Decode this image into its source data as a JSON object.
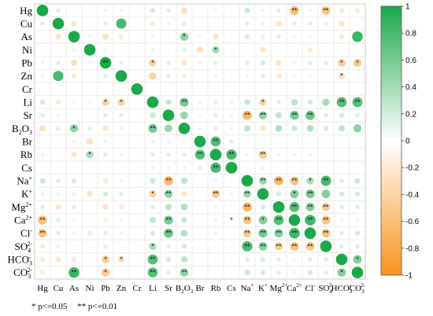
{
  "chart_data": {
    "type": "heatmap",
    "variables": [
      "Hg",
      "Cu",
      "As",
      "Ni",
      "Pb",
      "Zn",
      "Cr",
      "Li",
      "Sr",
      "B2O3",
      "Br",
      "Rb",
      "Cs",
      "Na+",
      "K+",
      "Mg2+",
      "Ca2+",
      "Cl-",
      "SO42-",
      "HCO3-",
      "CO32-"
    ],
    "row_labels": [
      {
        "base": "Hg",
        "sup": "",
        "sub": ""
      },
      {
        "base": "Cu",
        "sup": "",
        "sub": ""
      },
      {
        "base": "As",
        "sup": "",
        "sub": ""
      },
      {
        "base": "Ni",
        "sup": "",
        "sub": ""
      },
      {
        "base": "Pb",
        "sup": "",
        "sub": ""
      },
      {
        "base": "Zn",
        "sup": "",
        "sub": ""
      },
      {
        "base": "Cr",
        "sup": "",
        "sub": ""
      },
      {
        "base": "Li",
        "sup": "",
        "sub": ""
      },
      {
        "base": "Sr",
        "sup": "",
        "sub": ""
      },
      {
        "base": "B",
        "sup": "",
        "sub": "2",
        "base2": "O",
        "sub2": "3"
      },
      {
        "base": "Br",
        "sup": "",
        "sub": ""
      },
      {
        "base": "Rb",
        "sup": "",
        "sub": ""
      },
      {
        "base": "Cs",
        "sup": "",
        "sub": ""
      },
      {
        "base": "Na",
        "sup": "+",
        "sub": ""
      },
      {
        "base": "K",
        "sup": "+",
        "sub": ""
      },
      {
        "base": "Mg",
        "sup": "2+",
        "sub": ""
      },
      {
        "base": "Ca",
        "sup": "2+",
        "sub": ""
      },
      {
        "base": "Cl",
        "sup": "-",
        "sub": ""
      },
      {
        "base": "SO",
        "sup": "2-",
        "sub": "4"
      },
      {
        "base": "HCO",
        "sup": "-",
        "sub": "3"
      },
      {
        "base": "CO",
        "sup": "2-",
        "sub": "3"
      }
    ],
    "col_labels": [
      {
        "base": "Hg",
        "sup": "",
        "sub": ""
      },
      {
        "base": "Cu",
        "sup": "",
        "sub": ""
      },
      {
        "base": "As",
        "sup": "",
        "sub": ""
      },
      {
        "base": "Ni",
        "sup": "",
        "sub": ""
      },
      {
        "base": "Pb",
        "sup": "",
        "sub": ""
      },
      {
        "base": "Zn",
        "sup": "",
        "sub": ""
      },
      {
        "base": "Cr",
        "sup": "",
        "sub": ""
      },
      {
        "base": "Li",
        "sup": "",
        "sub": ""
      },
      {
        "base": "Sr",
        "sup": "",
        "sub": ""
      },
      {
        "base": "B",
        "sup": "",
        "sub": "2",
        "base2": "O",
        "sub2": "3"
      },
      {
        "base": "Br",
        "sup": "",
        "sub": ""
      },
      {
        "base": "Rb",
        "sup": "",
        "sub": ""
      },
      {
        "base": "Cs",
        "sup": "",
        "sub": ""
      },
      {
        "base": "Na",
        "sup": "+",
        "sub": ""
      },
      {
        "base": "K",
        "sup": "+",
        "sub": ""
      },
      {
        "base": "Mg",
        "sup": "2+",
        "sub": ""
      },
      {
        "base": "Ca",
        "sup": "2+",
        "sub": ""
      },
      {
        "base": "Cl",
        "sup": "-",
        "sub": ""
      },
      {
        "base": "SO",
        "sup": "2-",
        "sub": "4"
      },
      {
        "base": "HCO",
        "sup": "-",
        "sub": "3"
      },
      {
        "base": "CO",
        "sup": "2-",
        "sub": "3"
      }
    ],
    "matrix": [
      [
        1.0,
        0.15,
        0.05,
        0.05,
        0.1,
        0.1,
        0.05,
        0.2,
        0.15,
        -0.3,
        0.05,
        0.1,
        0.05,
        0.25,
        0.1,
        0.15,
        -0.6,
        0.1,
        -0.55,
        -0.2,
        -0.2
      ],
      [
        0.15,
        1.0,
        -0.25,
        0.05,
        0.15,
        0.8,
        0.05,
        -0.2,
        0.1,
        -0.2,
        0.05,
        0.05,
        0.05,
        0.15,
        0.1,
        -0.25,
        0.15,
        0.15,
        -0.15,
        -0.25,
        0.05
      ],
      [
        0.05,
        -0.25,
        1.0,
        0.1,
        -0.3,
        -0.2,
        0.05,
        0.1,
        0.05,
        0.5,
        0.1,
        -0.25,
        0.05,
        0.2,
        -0.15,
        0.15,
        0.1,
        0.1,
        0.05,
        -0.2,
        0.85
      ],
      [
        0.05,
        0.05,
        0.1,
        1.0,
        0.1,
        0.05,
        0.05,
        0.1,
        0.05,
        0.15,
        -0.3,
        0.4,
        0.05,
        0.05,
        -0.25,
        0.05,
        0.05,
        -0.2,
        0.05,
        0.05,
        0.05
      ],
      [
        0.1,
        0.15,
        -0.3,
        0.1,
        1.0,
        0.15,
        0.05,
        -0.4,
        0.15,
        -0.25,
        0.1,
        0.15,
        0.05,
        -0.2,
        0.2,
        -0.25,
        -0.15,
        0.15,
        0.15,
        -0.45,
        -0.5
      ],
      [
        0.1,
        0.8,
        -0.2,
        0.05,
        0.15,
        1.0,
        0.05,
        -0.4,
        0.15,
        -0.15,
        0.05,
        0.1,
        0.05,
        0.1,
        0.15,
        -0.2,
        0.1,
        0.1,
        0.05,
        -0.3,
        0.05
      ],
      [
        0.05,
        0.05,
        0.05,
        0.05,
        0.05,
        0.05,
        1.0,
        0.05,
        0.05,
        0.05,
        0.05,
        0.05,
        0.05,
        0.05,
        0.05,
        0.05,
        0.05,
        0.05,
        0.05,
        0.05,
        0.05
      ],
      [
        0.2,
        -0.2,
        0.1,
        0.1,
        -0.4,
        -0.4,
        0.05,
        1.0,
        0.25,
        0.6,
        0.1,
        0.15,
        0.1,
        0.25,
        -0.4,
        0.15,
        0.3,
        0.2,
        0.4,
        0.75,
        0.75
      ],
      [
        0.15,
        0.1,
        0.05,
        0.05,
        0.15,
        0.15,
        0.05,
        0.25,
        1.0,
        0.45,
        0.1,
        0.15,
        0.1,
        -0.65,
        0.5,
        0.3,
        0.6,
        0.65,
        0.15,
        0.2,
        0.15
      ],
      [
        -0.3,
        -0.2,
        0.5,
        0.15,
        -0.25,
        -0.15,
        0.05,
        0.6,
        0.45,
        1.0,
        0.1,
        0.15,
        0.1,
        0.3,
        -0.25,
        0.35,
        0.25,
        0.35,
        0.2,
        0.3,
        0.5
      ],
      [
        0.05,
        0.05,
        0.1,
        -0.3,
        0.1,
        0.05,
        0.05,
        0.1,
        0.1,
        0.1,
        1.0,
        0.75,
        0.15,
        0.05,
        0.05,
        0.05,
        0.05,
        0.05,
        0.05,
        0.05,
        0.05
      ],
      [
        0.1,
        0.05,
        -0.25,
        0.4,
        0.15,
        0.1,
        0.05,
        0.15,
        0.15,
        0.15,
        0.75,
        1.0,
        0.8,
        0.1,
        -0.5,
        0.1,
        0.1,
        0.1,
        0.05,
        0.05,
        0.05
      ],
      [
        0.05,
        0.05,
        0.05,
        0.05,
        0.05,
        0.05,
        0.05,
        0.1,
        0.1,
        0.1,
        0.15,
        0.8,
        1.0,
        0.05,
        0.1,
        0.05,
        0.05,
        0.05,
        0.05,
        0.05,
        0.05
      ],
      [
        0.25,
        0.15,
        0.2,
        0.05,
        -0.2,
        0.1,
        0.05,
        0.25,
        -0.65,
        0.3,
        0.05,
        0.1,
        0.05,
        1.0,
        0.45,
        -0.65,
        -0.55,
        0.4,
        0.8,
        0.15,
        0.25
      ],
      [
        0.1,
        0.1,
        -0.15,
        -0.25,
        0.2,
        0.15,
        0.05,
        -0.4,
        0.5,
        -0.25,
        0.05,
        -0.5,
        0.1,
        0.45,
        1.0,
        0.2,
        0.55,
        0.6,
        0.55,
        0.2,
        0.2
      ],
      [
        0.15,
        -0.25,
        0.15,
        0.05,
        -0.25,
        -0.2,
        0.05,
        0.15,
        0.3,
        0.35,
        0.05,
        0.1,
        0.05,
        -0.65,
        0.2,
        1.0,
        0.75,
        0.55,
        -0.5,
        0.15,
        0.15
      ],
      [
        -0.6,
        0.15,
        0.1,
        0.05,
        -0.15,
        0.1,
        0.05,
        0.3,
        0.6,
        0.25,
        0.05,
        0.1,
        0.05,
        -0.55,
        0.55,
        0.75,
        1.0,
        0.85,
        -0.55,
        0.1,
        0.1
      ],
      [
        -0.55,
        0.15,
        0.1,
        -0.2,
        0.15,
        0.1,
        0.05,
        0.2,
        0.65,
        0.35,
        0.05,
        0.1,
        0.05,
        -0.5,
        0.6,
        0.55,
        0.85,
        1.0,
        -0.55,
        0.15,
        0.2
      ],
      [
        -0.2,
        -0.15,
        0.05,
        0.05,
        0.15,
        0.05,
        0.05,
        0.4,
        0.15,
        0.2,
        0.05,
        0.05,
        0.05,
        0.8,
        0.55,
        -0.5,
        -0.55,
        -0.55,
        1.0,
        0.15,
        0.15
      ],
      [
        -0.2,
        -0.25,
        -0.2,
        0.05,
        -0.45,
        -0.3,
        0.05,
        0.75,
        0.2,
        0.3,
        0.05,
        0.05,
        0.05,
        0.15,
        0.2,
        0.15,
        0.1,
        0.15,
        0.15,
        1.0,
        0.55
      ],
      [
        -0.2,
        0.05,
        0.85,
        0.05,
        -0.5,
        0.05,
        0.05,
        0.75,
        0.15,
        0.5,
        0.05,
        0.05,
        0.05,
        0.25,
        0.2,
        0.15,
        0.1,
        0.2,
        0.15,
        0.55,
        1.0
      ]
    ],
    "significance_marks": {
      "0,16": "**",
      "0,18": "**",
      "2,9": "*",
      "3,11": "*",
      "4,4": "**",
      "4,7": "*",
      "4,19": "*",
      "4,20": "*",
      "5,19": "*",
      "7,4": "*",
      "7,5": "*",
      "7,9": "**",
      "7,14": "*",
      "7,19": "**",
      "7,20": "**",
      "8,13": "**",
      "8,14": "**",
      "8,16": "**",
      "8,17": "**",
      "9,2": "*",
      "9,7": "**",
      "10,11": "**",
      "11,3": "*",
      "11,10": "**",
      "11,12": "**",
      "11,14": "**",
      "12,11": "**",
      "13,8": "**",
      "13,14": "**",
      "13,15": "**",
      "13,16": "**",
      "13,17": "*",
      "13,18": "**",
      "14,7": "*",
      "14,8": "**",
      "14,11": "**",
      "14,13": "**",
      "14,16": "*",
      "14,17": "**",
      "15,13": "**",
      "15,16": "**",
      "15,17": "**",
      "15,18": "**",
      "16,0": "**",
      "16,8": "**",
      "16,12": "*",
      "16,13": "**",
      "16,14": "*",
      "16,15": "**",
      "16,17": "**",
      "16,18": "**",
      "17,0": "**",
      "17,8": "**",
      "17,13": "**",
      "17,14": "**",
      "17,15": "**",
      "17,16": "**",
      "17,18": "**",
      "18,7": "*",
      "18,13": "**",
      "18,14": "**",
      "18,15": "**",
      "18,16": "**",
      "18,17": "**",
      "19,4": "*",
      "19,5": "*",
      "19,7": "**",
      "19,20": "*",
      "20,2": "**",
      "20,4": "*",
      "20,7": "**",
      "20,9": "**",
      "20,19": "*"
    },
    "colorbar": {
      "min": -1,
      "max": 1,
      "ticks": [
        1,
        0.8,
        0.6,
        0.4,
        0.2,
        0,
        -0.2,
        -0.4,
        -0.6,
        -0.8,
        -1
      ],
      "tick_labels": [
        "1",
        "0.8",
        "0.6",
        "0.4",
        "0.2",
        "0",
        "-0.2",
        "-0.4",
        "-0.6",
        "-0.8",
        "-1"
      ],
      "positive_color": "#1ba84a",
      "neutral_color": "#ffffff",
      "negative_color": "#f7941d"
    },
    "legend_notes": [
      "* p<=0.05",
      "** p<=0.01"
    ]
  }
}
